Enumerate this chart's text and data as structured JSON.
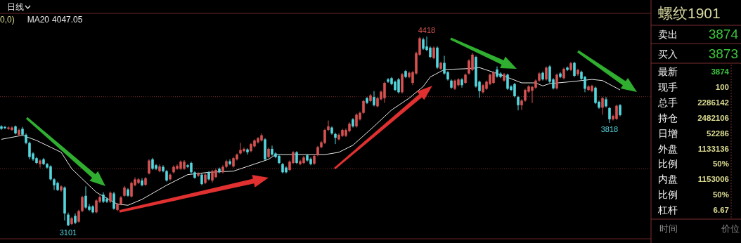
{
  "chart_data": [
    {
      "type": "candlestick",
      "title": "日线",
      "categories": [
        null,
        null,
        null,
        null,
        null,
        null,
        null,
        null,
        null,
        null,
        null,
        null,
        null,
        null,
        null,
        null,
        null,
        null,
        null,
        null,
        null,
        null,
        null,
        null,
        null,
        null,
        null,
        null,
        null,
        null,
        null,
        null,
        null,
        null,
        null,
        null,
        null,
        null,
        null,
        null,
        null,
        null,
        null,
        null,
        null,
        null,
        null,
        null,
        null,
        null,
        null,
        null,
        null,
        null,
        null,
        null,
        null,
        null,
        null,
        null,
        null,
        null,
        null,
        null,
        null,
        null,
        null,
        null,
        null,
        null,
        null,
        null,
        null,
        null,
        null,
        null,
        null,
        null,
        null,
        null,
        null,
        null,
        null,
        null,
        null,
        null,
        null,
        null,
        null,
        null,
        null,
        null,
        null,
        null,
        null,
        null,
        null,
        null,
        null,
        null,
        null,
        null,
        null,
        null,
        null,
        null,
        null,
        null,
        null,
        null,
        null,
        null,
        null,
        null,
        null,
        null,
        null,
        null,
        null,
        null,
        null,
        null,
        null,
        null,
        null,
        null,
        null,
        null,
        null,
        null,
        null,
        null,
        null,
        null,
        null,
        null,
        null,
        null,
        null,
        null,
        null,
        null,
        null,
        null,
        null,
        null,
        null,
        null,
        null,
        null,
        null,
        null,
        null,
        null,
        null,
        null,
        null,
        null,
        null,
        null,
        null,
        null,
        null,
        null,
        null,
        null,
        null,
        null,
        null,
        null,
        null,
        null,
        null,
        null,
        null,
        null,
        null
      ],
      "ohlc": [
        [
          3794,
          3802,
          3770,
          3777
        ],
        [
          3790,
          3798,
          3775,
          3782
        ],
        [
          3777,
          3795,
          3770,
          3786
        ],
        [
          3769,
          3795,
          3762,
          3786
        ],
        [
          3794,
          3800,
          3738,
          3745
        ],
        [
          3736,
          3780,
          3725,
          3769
        ],
        [
          3777,
          3790,
          3730,
          3736
        ],
        [
          3736,
          3745,
          3670,
          3679
        ],
        [
          3679,
          3688,
          3565,
          3581
        ],
        [
          3606,
          3615,
          3555,
          3565
        ],
        [
          3573,
          3582,
          3532,
          3540
        ],
        [
          3532,
          3565,
          3508,
          3557
        ],
        [
          3565,
          3575,
          3525,
          3532
        ],
        [
          3532,
          3540,
          3500,
          3508
        ],
        [
          3516,
          3524,
          3418,
          3426
        ],
        [
          3426,
          3434,
          3352,
          3385
        ],
        [
          3401,
          3410,
          3345,
          3352
        ],
        [
          3349,
          3385,
          3340,
          3377
        ],
        [
          3369,
          3377,
          3140,
          3189
        ],
        [
          3181,
          3195,
          3101,
          3107
        ],
        [
          3116,
          3165,
          3108,
          3156
        ],
        [
          3173,
          3190,
          3115,
          3124
        ],
        [
          3132,
          3215,
          3125,
          3206
        ],
        [
          3206,
          3312,
          3198,
          3303
        ],
        [
          3312,
          3377,
          3222,
          3230
        ],
        [
          3238,
          3255,
          3205,
          3214
        ],
        [
          3238,
          3246,
          3190,
          3197
        ],
        [
          3197,
          3287,
          3190,
          3279
        ],
        [
          3271,
          3315,
          3262,
          3303
        ],
        [
          3320,
          3336,
          3262,
          3271
        ],
        [
          3290,
          3300,
          3262,
          3271
        ],
        [
          3271,
          3342,
          3262,
          3333
        ],
        [
          3328,
          3340,
          3215,
          3222
        ],
        [
          3214,
          3262,
          3205,
          3254
        ],
        [
          3254,
          3310,
          3246,
          3300
        ],
        [
          3312,
          3380,
          3305,
          3369
        ],
        [
          3356,
          3365,
          3305,
          3312
        ],
        [
          3307,
          3410,
          3300,
          3401
        ],
        [
          3385,
          3440,
          3378,
          3426
        ],
        [
          3401,
          3436,
          3394,
          3426
        ],
        [
          3418,
          3434,
          3378,
          3385
        ],
        [
          3388,
          3442,
          3380,
          3434
        ],
        [
          3467,
          3565,
          3460,
          3557
        ],
        [
          3565,
          3575,
          3492,
          3500
        ],
        [
          3524,
          3532,
          3490,
          3500
        ],
        [
          3483,
          3530,
          3475,
          3516
        ],
        [
          3513,
          3524,
          3475,
          3483
        ],
        [
          3483,
          3492,
          3410,
          3418
        ],
        [
          3426,
          3467,
          3418,
          3459
        ],
        [
          3475,
          3524,
          3467,
          3513
        ],
        [
          3500,
          3530,
          3492,
          3519
        ],
        [
          3500,
          3557,
          3492,
          3549
        ],
        [
          3500,
          3560,
          3492,
          3549
        ],
        [
          3524,
          3532,
          3505,
          3513
        ],
        [
          3540,
          3549,
          3467,
          3475
        ],
        [
          3475,
          3483,
          3430,
          3437
        ],
        [
          3451,
          3475,
          3443,
          3467
        ],
        [
          3459,
          3467,
          3385,
          3393
        ],
        [
          3401,
          3467,
          3393,
          3459
        ],
        [
          3475,
          3483,
          3418,
          3426
        ],
        [
          3418,
          3492,
          3405,
          3483
        ],
        [
          3442,
          3500,
          3434,
          3491
        ],
        [
          3500,
          3508,
          3467,
          3475
        ],
        [
          3475,
          3524,
          3467,
          3513
        ],
        [
          3513,
          3562,
          3505,
          3552
        ],
        [
          3552,
          3565,
          3524,
          3532
        ],
        [
          3516,
          3582,
          3508,
          3573
        ],
        [
          3565,
          3606,
          3557,
          3598
        ],
        [
          3606,
          3679,
          3598,
          3630
        ],
        [
          3622,
          3647,
          3614,
          3638
        ],
        [
          3634,
          3642,
          3598,
          3614
        ],
        [
          3622,
          3679,
          3614,
          3671
        ],
        [
          3655,
          3704,
          3647,
          3696
        ],
        [
          3683,
          3720,
          3675,
          3712
        ],
        [
          3696,
          3745,
          3688,
          3732
        ],
        [
          3704,
          3712,
          3557,
          3565
        ],
        [
          3581,
          3647,
          3573,
          3638
        ],
        [
          3638,
          3660,
          3590,
          3598
        ],
        [
          3606,
          3614,
          3573,
          3581
        ],
        [
          3589,
          3598,
          3532,
          3540
        ],
        [
          3532,
          3540,
          3467,
          3475
        ],
        [
          3508,
          3516,
          3467,
          3475
        ],
        [
          3491,
          3557,
          3483,
          3549
        ],
        [
          3540,
          3622,
          3532,
          3614
        ],
        [
          3614,
          3622,
          3532,
          3540
        ],
        [
          3532,
          3562,
          3524,
          3552
        ],
        [
          3540,
          3589,
          3532,
          3578
        ],
        [
          3593,
          3601,
          3549,
          3557
        ],
        [
          3568,
          3578,
          3524,
          3532
        ],
        [
          3535,
          3598,
          3527,
          3589
        ],
        [
          3594,
          3658,
          3586,
          3650
        ],
        [
          3650,
          3692,
          3642,
          3683
        ],
        [
          3679,
          3777,
          3671,
          3769
        ],
        [
          3769,
          3835,
          3761,
          3794
        ],
        [
          3786,
          3794,
          3736,
          3745
        ],
        [
          3741,
          3750,
          3671,
          3715
        ],
        [
          3704,
          3745,
          3696,
          3736
        ],
        [
          3728,
          3777,
          3720,
          3769
        ],
        [
          3728,
          3780,
          3720,
          3769
        ],
        [
          3761,
          3822,
          3753,
          3813
        ],
        [
          3843,
          3851,
          3786,
          3794
        ],
        [
          3794,
          3884,
          3786,
          3875
        ],
        [
          3843,
          3897,
          3835,
          3888
        ],
        [
          3888,
          3978,
          3880,
          3970
        ],
        [
          3990,
          3998,
          3949,
          3957
        ],
        [
          3970,
          4018,
          3962,
          4009
        ],
        [
          3998,
          4039,
          3933,
          3941
        ],
        [
          3933,
          3998,
          3925,
          3990
        ],
        [
          3982,
          4043,
          3974,
          4035
        ],
        [
          3990,
          4104,
          3957,
          4096
        ],
        [
          4120,
          4130,
          4096,
          4104
        ],
        [
          4129,
          4137,
          4080,
          4088
        ],
        [
          4104,
          4112,
          4039,
          4047
        ],
        [
          4120,
          4130,
          4022,
          4031
        ],
        [
          4031,
          4165,
          4022,
          4156
        ],
        [
          4178,
          4186,
          4129,
          4137
        ],
        [
          4137,
          4175,
          4129,
          4166
        ],
        [
          4096,
          4178,
          4080,
          4170
        ],
        [
          4161,
          4312,
          4153,
          4303
        ],
        [
          4292,
          4415,
          4284,
          4406
        ],
        [
          4398,
          4410,
          4325,
          4333
        ],
        [
          4349,
          4418,
          4316,
          4325
        ],
        [
          4341,
          4349,
          4268,
          4276
        ],
        [
          4268,
          4349,
          4260,
          4341
        ],
        [
          4341,
          4349,
          4194,
          4202
        ],
        [
          4194,
          4243,
          4186,
          4235
        ],
        [
          4235,
          4284,
          4153,
          4161
        ],
        [
          4170,
          4178,
          4112,
          4120
        ],
        [
          4112,
          4120,
          4055,
          4063
        ],
        [
          4055,
          4120,
          4047,
          4112
        ],
        [
          4080,
          4129,
          4072,
          4120
        ],
        [
          4120,
          4129,
          4063,
          4080
        ],
        [
          4096,
          4161,
          4088,
          4153
        ],
        [
          4161,
          4260,
          4153,
          4251
        ],
        [
          4186,
          4303,
          4178,
          4292
        ],
        [
          4276,
          4284,
          4063,
          4071
        ],
        [
          4104,
          4112,
          3993,
          4039
        ],
        [
          4031,
          4088,
          4022,
          4080
        ],
        [
          4055,
          4112,
          4047,
          4104
        ],
        [
          4088,
          4161,
          4080,
          4153
        ],
        [
          4096,
          4178,
          4088,
          4170
        ],
        [
          4189,
          4210,
          4132,
          4140
        ],
        [
          4161,
          4170,
          4129,
          4137
        ],
        [
          4112,
          4165,
          4104,
          4156
        ],
        [
          4153,
          4161,
          4047,
          4055
        ],
        [
          4071,
          4080,
          4039,
          4047
        ],
        [
          4088,
          4096,
          3995,
          4003
        ],
        [
          3998,
          4006,
          3905,
          3941
        ],
        [
          3941,
          3982,
          3908,
          3973
        ],
        [
          3973,
          4055,
          3965,
          4047
        ],
        [
          4035,
          4080,
          4027,
          4071
        ],
        [
          4042,
          4076,
          3957,
          4068
        ],
        [
          4063,
          4120,
          4055,
          4112
        ],
        [
          4112,
          4170,
          4104,
          4161
        ],
        [
          4166,
          4175,
          4112,
          4120
        ],
        [
          4120,
          4210,
          4112,
          4202
        ],
        [
          4210,
          4219,
          4096,
          4104
        ],
        [
          4120,
          4129,
          4050,
          4058
        ],
        [
          4058,
          4161,
          4050,
          4153
        ],
        [
          4161,
          4170,
          4129,
          4137
        ],
        [
          4129,
          4202,
          4120,
          4194
        ],
        [
          4202,
          4210,
          4178,
          4186
        ],
        [
          4186,
          4243,
          4178,
          4232
        ],
        [
          4235,
          4243,
          4137,
          4145
        ],
        [
          4156,
          4194,
          4145,
          4186
        ],
        [
          4173,
          4181,
          4116,
          4124
        ],
        [
          4137,
          4145,
          4031,
          4055
        ],
        [
          4047,
          4080,
          4039,
          4071
        ],
        [
          4039,
          4083,
          4031,
          4075
        ],
        [
          4063,
          4071,
          3949,
          3957
        ],
        [
          3965,
          3973,
          3916,
          3924
        ],
        [
          3924,
          3998,
          3875,
          3990
        ],
        [
          3982,
          3998,
          3925,
          3933
        ],
        [
          3921,
          3929,
          3818,
          3843
        ],
        [
          3843,
          3875,
          3835,
          3867
        ],
        [
          3846,
          3945,
          3838,
          3937
        ],
        [
          3941,
          3949,
          3864,
          3872
        ]
      ],
      "series": [
        {
          "name": "MA20",
          "type": "line",
          "color": "#e8e8e8",
          "values": [
            3704,
            null,
            null,
            null,
            null,
            null,
            3732,
            null,
            null,
            null,
            3696,
            null,
            null,
            null,
            null,
            null,
            null,
            3614,
            null,
            null,
            3500,
            null,
            null,
            null,
            null,
            null,
            null,
            3336,
            null,
            null,
            null,
            null,
            null,
            3254,
            null,
            null,
            3246,
            null,
            null,
            null,
            3287,
            null,
            null,
            null,
            null,
            null,
            null,
            3385,
            null,
            null,
            null,
            null,
            null,
            3459,
            null,
            null,
            null,
            null,
            null,
            3475,
            null,
            null,
            null,
            null,
            null,
            null,
            3483,
            null,
            null,
            null,
            null,
            null,
            null,
            null,
            null,
            null,
            3565,
            null,
            3598,
            null,
            null,
            null,
            null,
            null,
            null,
            null,
            3598,
            null,
            null,
            null,
            null,
            null,
            3598,
            null,
            null,
            null,
            3614,
            null,
            null,
            null,
            3663,
            null,
            null,
            null,
            null,
            null,
            3794,
            null,
            null,
            null,
            null,
            3908,
            null,
            null,
            null,
            null,
            3990,
            null,
            null,
            null,
            4071,
            null,
            4137,
            null,
            null,
            null,
            4189,
            null,
            null,
            null,
            null,
            null,
            4194,
            null,
            null,
            null,
            4202,
            null,
            null,
            null,
            null,
            null,
            4153,
            null,
            null,
            null,
            null,
            null,
            4096,
            null,
            null,
            null,
            4096,
            null,
            4075,
            null,
            4091,
            null,
            null,
            null,
            null,
            null,
            4104,
            null,
            null,
            null,
            null,
            null,
            4120,
            null,
            null,
            4112,
            null,
            null,
            null,
            null,
            4047
          ]
        }
      ],
      "ref_lines": [
        {
          "axis": "y",
          "value": 4000,
          "color": "#7a2e2e",
          "line_style": "dotted"
        },
        {
          "axis": "y",
          "value": 3500,
          "color": "#7a2e2e",
          "line_style": "dotted"
        }
      ],
      "annotations": [
        "0,0)",
        "4047.05",
        {
          "text": "4418",
          "y": 4418
        },
        {
          "text": "3101",
          "y": 3101
        },
        {
          "text": "3818",
          "y": 3818
        }
      ]
    },
    {
      "type": "other",
      "title": "螺纹1901",
      "annotations": [
        "卖出",
        "3874",
        "买入",
        "3873",
        "最新",
        "3874",
        "现手",
        "100",
        "总手",
        "2286142",
        "持仓",
        "2482106",
        "日增",
        "52286",
        "外盘",
        "1133136",
        "比例",
        "50%",
        "内盘",
        "1153006",
        "比例",
        "50%",
        "杠杆",
        "6.67",
        "时间",
        "价位"
      ]
    }
  ]
}
